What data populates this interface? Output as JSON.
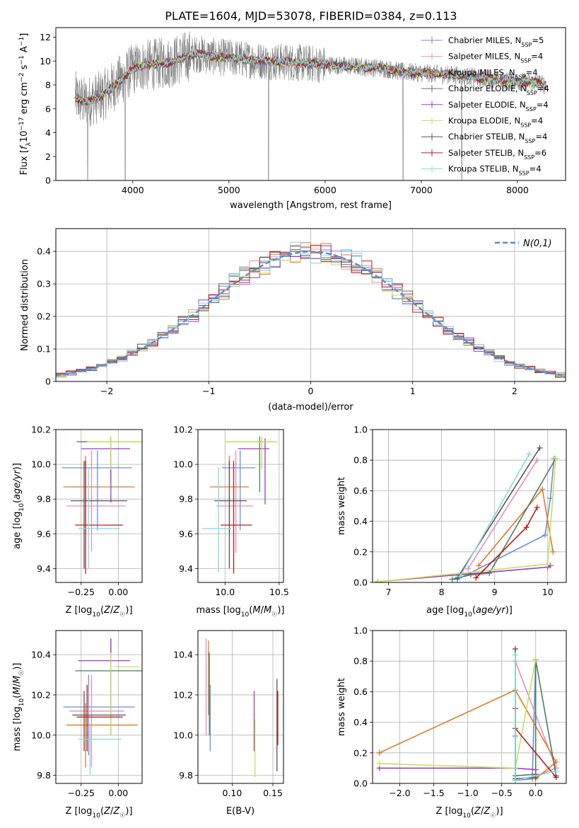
{
  "figure": {
    "title": "PLATE=1604, MJD=53078, FIBERID=0384, z=0.113"
  },
  "series": [
    {
      "name": "Chabrier MILES, N",
      "sub": "SSP",
      "n": "=5",
      "color": "#6c8ddc"
    },
    {
      "name": "Salpeter MILES, N",
      "sub": "SSP",
      "n": "=4",
      "color": "#e08fbd"
    },
    {
      "name": "Kroupa MILES, N",
      "sub": "SSP",
      "n": "=4",
      "color": "#dd7a2a"
    },
    {
      "name": "Chabrier ELODIE, N",
      "sub": "SSP",
      "n": "=4",
      "color": "#4f7d5f"
    },
    {
      "name": "Salpeter ELODIE, N",
      "sub": "SSP",
      "n": "=4",
      "color": "#9b3fb5"
    },
    {
      "name": "Kroupa ELODIE, N",
      "sub": "SSP",
      "n": "=4",
      "color": "#c8df5c"
    },
    {
      "name": "Chabrier STELIB, N",
      "sub": "SSP",
      "n": "=4",
      "color": "#555555"
    },
    {
      "name": "Salpeter STELIB, N",
      "sub": "SSP",
      "n": "=6",
      "color": "#b71c1c"
    },
    {
      "name": "Kroupa STELIB, N",
      "sub": "SSP",
      "n": "=4",
      "color": "#86d7dd"
    }
  ],
  "chart_data": [
    {
      "id": "spectrum",
      "type": "line",
      "title": "PLATE=1604, MJD=53078, FIBERID=0384, z=0.113",
      "xlabel": "wavelength [Angstrom, rest frame]",
      "ylabel": "Flux [f_λ 10^-17 erg cm^-2 s^-1 A^-1]",
      "xlim": [
        3200,
        8500
      ],
      "ylim": [
        0,
        12.8
      ],
      "xticks": [
        4000,
        5000,
        6000,
        7000,
        8000
      ],
      "yticks": [
        0,
        2,
        4,
        6,
        8,
        10,
        12
      ],
      "data_color": "#808080",
      "continuum": {
        "x": [
          3400,
          3500,
          3600,
          3700,
          3800,
          3900,
          4000,
          4100,
          4200,
          4300,
          4400,
          4500,
          4600,
          4700,
          4800,
          4900,
          5000,
          5200,
          5400,
          5600,
          5800,
          6000,
          6200,
          6400,
          6600,
          6800,
          7000,
          7200,
          7400,
          7600,
          7800,
          8000,
          8200,
          8300
        ],
        "y": [
          7.0,
          6.5,
          6.8,
          7.2,
          7.9,
          8.6,
          9.3,
          9.6,
          9.7,
          9.8,
          9.9,
          10.2,
          10.5,
          10.6,
          10.4,
          10.3,
          10.3,
          10.1,
          10.0,
          9.9,
          9.8,
          9.7,
          9.6,
          9.5,
          9.4,
          9.1,
          9.0,
          8.9,
          8.8,
          8.6,
          8.4,
          8.3,
          8.2,
          8.0
        ]
      },
      "dips": [
        {
          "x": 3530,
          "y": 0
        },
        {
          "x": 3920,
          "y": 0
        },
        {
          "x": 5410,
          "y": 0
        },
        {
          "x": 6810,
          "y": 0
        },
        {
          "x": 7420,
          "y": 0
        }
      ]
    },
    {
      "id": "residuals",
      "type": "histogram",
      "xlabel": "(data-model)/error",
      "ylabel": "Normed distribution",
      "xlim": [
        -2.5,
        2.5
      ],
      "ylim": [
        0,
        0.47
      ],
      "xticks": [
        -2,
        -1,
        0,
        1,
        2
      ],
      "yticks": [
        0.0,
        0.1,
        0.2,
        0.3,
        0.4
      ],
      "legend": "N(0,1)",
      "bin_width": 0.1
    },
    {
      "id": "age_vs_Z",
      "type": "errorbar",
      "xlabel": "Z [log10(Z/Z☉)]",
      "ylabel": "age [log10(age/yr)]",
      "xlim": [
        -0.42,
        0.16
      ],
      "ylim": [
        9.32,
        10.2
      ],
      "xticks": [
        -0.25,
        0.0
      ],
      "yticks": [
        9.4,
        9.6,
        9.8,
        10.0,
        10.2
      ],
      "points": [
        {
          "x": -0.14,
          "y": 9.98,
          "xe": [
            -0.38,
            0.09
          ],
          "ye": [
            9.62,
            10.08
          ]
        },
        {
          "x": -0.18,
          "y": 9.76,
          "xe": [
            -0.35,
            0.05
          ],
          "ye": [
            9.5,
            10.08
          ]
        },
        {
          "x": -0.22,
          "y": 9.87,
          "xe": [
            -0.37,
            0.11
          ],
          "ye": [
            9.6,
            10.05
          ]
        },
        {
          "x": -0.05,
          "y": 10.13,
          "xe": [
            -0.28,
            0.16
          ],
          "ye": [
            9.9,
            10.16
          ]
        },
        {
          "x": -0.05,
          "y": 10.09,
          "xe": [
            -0.25,
            0.08
          ],
          "ye": [
            9.78,
            10.15
          ]
        },
        {
          "x": -0.05,
          "y": 10.13,
          "xe": [
            -0.21,
            0.16
          ],
          "ye": [
            9.97,
            10.16
          ]
        },
        {
          "x": -0.23,
          "y": 9.79,
          "xe": [
            -0.32,
            0.06
          ],
          "ye": [
            9.4,
            10.02
          ]
        },
        {
          "x": -0.22,
          "y": 9.65,
          "xe": [
            -0.29,
            0.03
          ],
          "ye": [
            9.37,
            10.02
          ]
        },
        {
          "x": -0.2,
          "y": 9.63,
          "xe": [
            -0.27,
            0.01
          ],
          "ye": [
            9.4,
            9.98
          ]
        }
      ]
    },
    {
      "id": "age_vs_mass",
      "type": "errorbar",
      "xlabel": "mass [log10(M/M☉)]",
      "ylabel": "",
      "xlim": [
        9.75,
        10.54
      ],
      "ylim": [
        9.32,
        10.2
      ],
      "xticks": [
        10.0,
        10.5
      ],
      "yticks": [
        9.4,
        9.6,
        9.8,
        10.0,
        10.2
      ],
      "points": [
        {
          "x": 10.14,
          "y": 9.98,
          "xe": [
            9.97,
            10.28
          ],
          "ye": [
            9.62,
            10.08
          ]
        },
        {
          "x": 10.1,
          "y": 9.76,
          "xe": [
            9.92,
            10.26
          ],
          "ye": [
            9.49,
            10.08
          ]
        },
        {
          "x": 10.04,
          "y": 9.87,
          "xe": [
            9.86,
            10.22
          ],
          "ye": [
            9.6,
            10.05
          ]
        },
        {
          "x": 10.32,
          "y": 10.13,
          "xe": [
            10.0,
            10.48
          ],
          "ye": [
            9.84,
            10.16
          ]
        },
        {
          "x": 10.37,
          "y": 10.09,
          "xe": [
            10.12,
            10.41
          ],
          "ye": [
            9.77,
            10.15
          ]
        },
        {
          "x": 10.34,
          "y": 10.13,
          "xe": [
            10.0,
            10.48
          ],
          "ye": [
            9.97,
            10.16
          ]
        },
        {
          "x": 10.04,
          "y": 9.79,
          "xe": [
            9.9,
            10.2
          ],
          "ye": [
            9.4,
            10.02
          ]
        },
        {
          "x": 10.08,
          "y": 9.65,
          "xe": [
            9.96,
            10.25
          ],
          "ye": [
            9.37,
            10.02
          ]
        },
        {
          "x": 9.94,
          "y": 9.63,
          "xe": [
            9.79,
            10.06
          ],
          "ye": [
            9.38,
            9.98
          ]
        }
      ]
    },
    {
      "id": "weight_vs_age",
      "type": "line",
      "xlabel": "age [log10(age/yr)]",
      "ylabel": "mass weight",
      "xlim": [
        6.7,
        10.35
      ],
      "ylim": [
        0,
        1.0
      ],
      "xticks": [
        7,
        8,
        9,
        10
      ],
      "yticks": [
        0.0,
        0.2,
        0.4,
        0.6,
        0.8,
        1.0
      ],
      "series": [
        {
          "x": [
            8.3,
            9.95,
            10.05,
            10.12
          ],
          "y": [
            0.02,
            0.31,
            0.55,
            0.81
          ]
        },
        {
          "x": [
            8.5,
            9.8
          ],
          "y": [
            0.09,
            0.8
          ]
        },
        {
          "x": [
            8.7,
            9.9,
            10.1
          ],
          "y": [
            0.11,
            0.61,
            0.2
          ]
        },
        {
          "x": [
            8.2,
            8.55,
            8.9,
            10.15
          ],
          "y": [
            0.02,
            0.05,
            0.06,
            0.81
          ]
        },
        {
          "x": [
            6.8,
            10.0,
            10.05
          ],
          "y": [
            0.005,
            0.1,
            0.11
          ]
        },
        {
          "x": [
            6.8,
            10.0,
            10.15
          ],
          "y": [
            0.004,
            0.12,
            0.81
          ]
        },
        {
          "x": [
            8.3,
            9.85
          ],
          "y": [
            0.03,
            0.88
          ]
        },
        {
          "x": [
            8.65,
            9.6,
            9.8
          ],
          "y": [
            0.03,
            0.36,
            0.49
          ]
        },
        {
          "x": [
            8.35,
            9.65
          ],
          "y": [
            0.04,
            0.84
          ]
        }
      ]
    },
    {
      "id": "mass_vs_Z",
      "type": "errorbar",
      "xlabel": "Z [log10(Z/Z☉)]",
      "ylabel": "mass [log10(M/M☉)]",
      "xlim": [
        -0.42,
        0.16
      ],
      "ylim": [
        9.76,
        10.52
      ],
      "xticks": [
        -0.25,
        0.0
      ],
      "yticks": [
        9.8,
        10.0,
        10.2,
        10.4
      ],
      "points": [
        {
          "x": -0.2,
          "y": 10.14,
          "xe": [
            -0.37,
            0.11
          ],
          "ye": [
            9.9,
            10.3
          ]
        },
        {
          "x": -0.18,
          "y": 10.12,
          "xe": [
            -0.33,
            0.04
          ],
          "ye": [
            9.84,
            10.3
          ]
        },
        {
          "x": -0.22,
          "y": 10.05,
          "xe": [
            -0.35,
            0.13
          ],
          "ye": [
            9.84,
            10.16
          ]
        },
        {
          "x": -0.05,
          "y": 10.32,
          "xe": [
            -0.29,
            0.16
          ],
          "ye": [
            10.0,
            10.48
          ]
        },
        {
          "x": -0.05,
          "y": 10.37,
          "xe": [
            -0.27,
            0.08
          ],
          "ye": [
            10.12,
            10.48
          ]
        },
        {
          "x": -0.05,
          "y": 10.34,
          "xe": [
            -0.03,
            0.14
          ],
          "ye": [
            10.0,
            10.41
          ]
        },
        {
          "x": -0.23,
          "y": 10.1,
          "xe": [
            -0.31,
            0.05
          ],
          "ye": [
            9.92,
            10.22
          ]
        },
        {
          "x": -0.21,
          "y": 10.09,
          "xe": [
            -0.28,
            0.03
          ],
          "ye": [
            9.92,
            10.25
          ]
        },
        {
          "x": -0.19,
          "y": 9.98,
          "xe": [
            -0.27,
            0.02
          ],
          "ye": [
            9.8,
            10.06
          ]
        }
      ]
    },
    {
      "id": "mass_vs_ebv",
      "type": "errorbar",
      "xlabel": "E(B-V)",
      "ylabel": "",
      "xlim": [
        0.058,
        0.163
      ],
      "ylim": [
        9.76,
        10.52
      ],
      "xticks": [
        0.1,
        0.15
      ],
      "yticks": [
        9.8,
        10.0,
        10.2,
        10.4
      ],
      "points": [
        {
          "x": 0.073,
          "y": 10.1,
          "ye": [
            9.92,
            10.25
          ]
        },
        {
          "x": 0.068,
          "y": 10.2,
          "ye": [
            10.0,
            10.48
          ]
        },
        {
          "x": 0.071,
          "y": 10.26,
          "ye": [
            10.1,
            10.47
          ]
        },
        {
          "x": 0.072,
          "y": 10.2,
          "ye": [
            10.0,
            10.41
          ]
        },
        {
          "x": 0.127,
          "y": 10.09,
          "ye": [
            9.92,
            10.22
          ]
        },
        {
          "x": 0.128,
          "y": 9.98,
          "ye": [
            9.79,
            10.08
          ]
        },
        {
          "x": 0.155,
          "y": 10.05,
          "ye": [
            9.82,
            10.28
          ]
        },
        {
          "x": 0.156,
          "y": 10.1,
          "ye": [
            9.95,
            10.22
          ]
        }
      ]
    },
    {
      "id": "weight_vs_Z",
      "type": "line",
      "xlabel": "Z [log10(Z/Z☉)]",
      "ylabel": "mass weight",
      "xlim": [
        -2.4,
        0.45
      ],
      "ylim": [
        0,
        1.0
      ],
      "xticks": [
        -2.0,
        -1.5,
        -1.0,
        -0.5,
        0.0
      ],
      "yticks": [
        0.0,
        0.2,
        0.4,
        0.6,
        0.8,
        1.0
      ],
      "series": [
        {
          "x": [
            -0.3,
            -0.3,
            -0.05,
            0.0
          ],
          "y": [
            0.31,
            0.02,
            0.03,
            0.81
          ]
        },
        {
          "x": [
            -0.3,
            0.3,
            0.0
          ],
          "y": [
            0.8,
            0.1,
            0.05
          ]
        },
        {
          "x": [
            -2.3,
            -0.3,
            0.3,
            0.0
          ],
          "y": [
            0.2,
            0.61,
            0.14,
            0.03
          ]
        },
        {
          "x": [
            -0.3,
            0.0,
            0.0,
            0.3
          ],
          "y": [
            0.05,
            0.06,
            0.81,
            0.05
          ]
        },
        {
          "x": [
            -2.3,
            -0.3,
            0.0
          ],
          "y": [
            0.1,
            0.1,
            0.09
          ]
        },
        {
          "x": [
            -2.3,
            -0.3,
            0.0
          ],
          "y": [
            0.13,
            0.1,
            0.81
          ]
        },
        {
          "x": [
            -0.3,
            -0.3,
            0.0
          ],
          "y": [
            0.88,
            0.03,
            0.04
          ]
        },
        {
          "x": [
            -0.3,
            -0.3,
            0.3
          ],
          "y": [
            0.49,
            0.36,
            0.04
          ]
        },
        {
          "x": [
            -0.3,
            -0.3,
            0.3
          ],
          "y": [
            0.84,
            0.02,
            0.08
          ]
        }
      ]
    }
  ]
}
